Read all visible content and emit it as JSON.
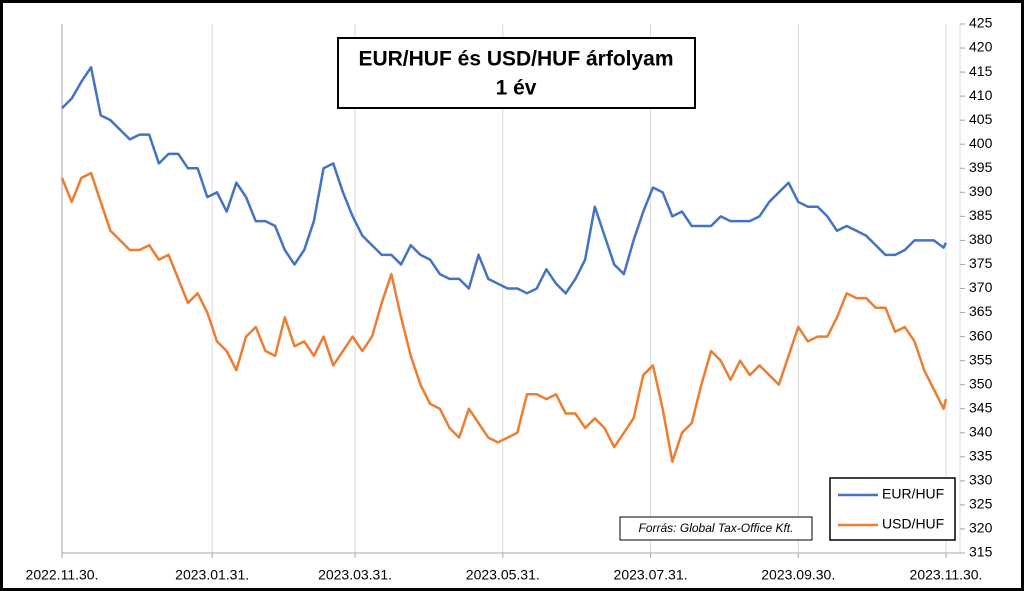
{
  "chart_data": {
    "type": "line",
    "title": "EUR/HUF és USD/HUF árfolyam",
    "subtitle": "1 év",
    "annotation": "Forrás: Global Tax-Office Kft.",
    "legend": "bottom-right",
    "grid": true,
    "x": [
      "2022.11.30.",
      "2022.12.04.",
      "2022.12.08.",
      "2022.12.12.",
      "2022.12.16.",
      "2022.12.20.",
      "2022.12.24.",
      "2022.12.28.",
      "2023.01.01.",
      "2023.01.05.",
      "2023.01.09.",
      "2023.01.13.",
      "2023.01.17.",
      "2023.01.21.",
      "2023.01.25.",
      "2023.01.29.",
      "2023.02.02.",
      "2023.02.06.",
      "2023.02.10.",
      "2023.02.14.",
      "2023.02.18.",
      "2023.02.22.",
      "2023.02.26.",
      "2023.03.02.",
      "2023.03.06.",
      "2023.03.10.",
      "2023.03.14.",
      "2023.03.18.",
      "2023.03.22.",
      "2023.03.26.",
      "2023.03.30.",
      "2023.04.03.",
      "2023.04.07.",
      "2023.04.11.",
      "2023.04.15.",
      "2023.04.19.",
      "2023.04.23.",
      "2023.04.27.",
      "2023.05.01.",
      "2023.05.05.",
      "2023.05.09.",
      "2023.05.13.",
      "2023.05.17.",
      "2023.05.21.",
      "2023.05.25.",
      "2023.05.29.",
      "2023.06.02.",
      "2023.06.06.",
      "2023.06.10.",
      "2023.06.14.",
      "2023.06.18.",
      "2023.06.22.",
      "2023.06.26.",
      "2023.06.30.",
      "2023.07.04.",
      "2023.07.08.",
      "2023.07.12.",
      "2023.07.16.",
      "2023.07.20.",
      "2023.07.24.",
      "2023.07.28.",
      "2023.08.01.",
      "2023.08.05.",
      "2023.08.09.",
      "2023.08.13.",
      "2023.08.17.",
      "2023.08.21.",
      "2023.08.25.",
      "2023.08.29.",
      "2023.09.02.",
      "2023.09.06.",
      "2023.09.10.",
      "2023.09.14.",
      "2023.09.18.",
      "2023.09.22.",
      "2023.09.26.",
      "2023.09.30.",
      "2023.10.04.",
      "2023.10.08.",
      "2023.10.12.",
      "2023.10.16.",
      "2023.10.20.",
      "2023.10.24.",
      "2023.10.28.",
      "2023.11.01.",
      "2023.11.05.",
      "2023.11.09.",
      "2023.11.13.",
      "2023.11.17.",
      "2023.11.21.",
      "2023.11.25.",
      "2023.11.29.",
      "2023.11.30."
    ],
    "series": [
      {
        "name": "EUR/HUF",
        "color": "#4472c4",
        "values": [
          407.5,
          409.5,
          413,
          416,
          406,
          405,
          403,
          401,
          402,
          402,
          396,
          398,
          398,
          395,
          395,
          389,
          390,
          386,
          392,
          389,
          384,
          384,
          383,
          378,
          375,
          378,
          384,
          395,
          396,
          390,
          385,
          381,
          379,
          377,
          377,
          375,
          379,
          377,
          376,
          373,
          372,
          372,
          370,
          377,
          372,
          371,
          370,
          370,
          369,
          370,
          374,
          371,
          369,
          372,
          376,
          387,
          381,
          375,
          373,
          380,
          386,
          391,
          390,
          385,
          386,
          383,
          383,
          383,
          385,
          384,
          384,
          384,
          385,
          388,
          390,
          392,
          388,
          387,
          387,
          385,
          382,
          383,
          382,
          381,
          379,
          377,
          377,
          378,
          380,
          380,
          380,
          378.5,
          379.5
        ]
      },
      {
        "name": "USD/HUF",
        "color": "#ed7d31",
        "values": [
          393,
          388,
          393,
          394,
          388,
          382,
          380,
          378,
          378,
          379,
          376,
          377,
          372,
          367,
          369,
          365,
          359,
          357,
          353,
          360,
          362,
          357,
          356,
          364,
          358,
          359,
          356,
          360,
          354,
          357,
          360,
          357,
          360,
          367,
          373,
          364,
          356,
          350,
          346,
          345,
          341,
          339,
          345,
          342,
          339,
          338,
          339,
          340,
          348,
          348,
          347,
          348,
          344,
          344,
          341,
          343,
          341,
          337,
          340,
          343,
          352,
          354,
          345,
          334,
          340,
          342,
          350,
          357,
          355,
          351,
          355,
          352,
          354,
          352,
          350,
          356,
          362,
          359,
          360,
          360,
          364,
          369,
          368,
          368,
          366,
          366,
          361,
          362,
          359,
          353,
          349,
          345,
          347
        ]
      }
    ],
    "xlim": [
      "2022.11.30.",
      "2023.11.30."
    ],
    "xticks": [
      "2022.11.30.",
      "2023.01.31.",
      "2023.03.31.",
      "2023.05.31.",
      "2023.07.31.",
      "2023.09.30.",
      "2023.11.30."
    ],
    "ylim": [
      315,
      425
    ],
    "yticks": [
      315,
      320,
      325,
      330,
      335,
      340,
      345,
      350,
      355,
      360,
      365,
      370,
      375,
      380,
      385,
      390,
      395,
      400,
      405,
      410,
      415,
      420,
      425
    ]
  }
}
